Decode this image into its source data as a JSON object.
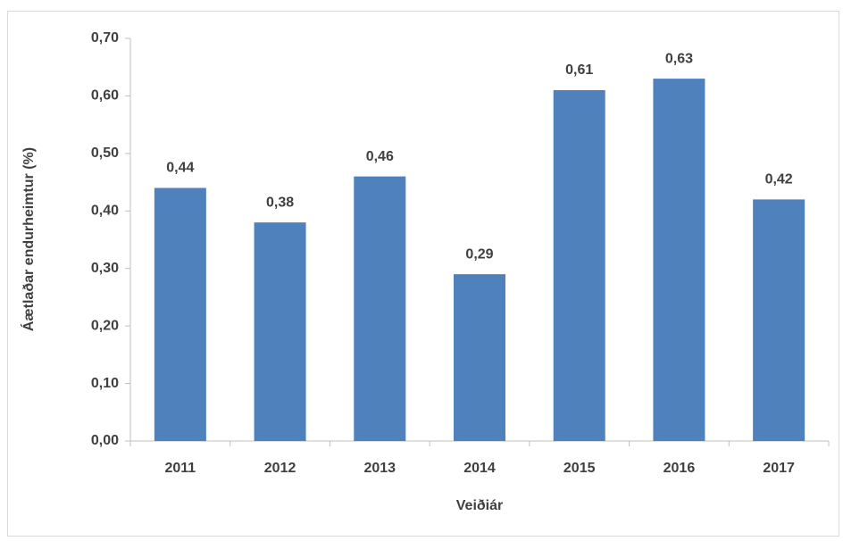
{
  "chart_data": {
    "type": "bar",
    "x_label": "Veiðiár",
    "y_label": "Áætlaðar endurheimtur (%)",
    "categories": [
      "2011",
      "2012",
      "2013",
      "2014",
      "2015",
      "2016",
      "2017"
    ],
    "values": [
      0.44,
      0.38,
      0.46,
      0.29,
      0.61,
      0.63,
      0.42
    ],
    "value_labels": [
      "0,44",
      "0,38",
      "0,46",
      "0,29",
      "0,61",
      "0,63",
      "0,42"
    ],
    "color": "#4f81bd",
    "ylim": [
      0,
      0.7
    ],
    "yticks": [
      {
        "value": 0,
        "label": "0,00"
      },
      {
        "value": 0.1,
        "label": "0,10"
      },
      {
        "value": 0.2,
        "label": "0,20"
      },
      {
        "value": 0.3,
        "label": "0,30"
      },
      {
        "value": 0.4,
        "label": "0,40"
      },
      {
        "value": 0.5,
        "label": "0,50"
      },
      {
        "value": 0.6,
        "label": "0,60"
      },
      {
        "value": 0.7,
        "label": "0,70"
      }
    ],
    "grid": false
  }
}
